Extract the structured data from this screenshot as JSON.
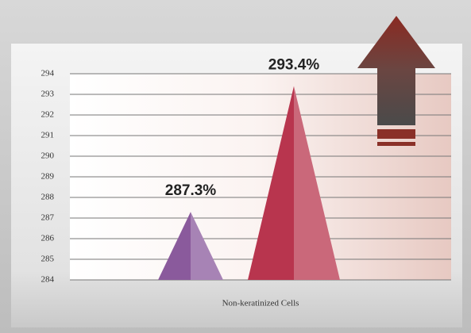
{
  "chart_data": {
    "type": "pyramid",
    "categories": [
      "Non-keratinized Cells"
    ],
    "series": [
      {
        "color": "#8a5a9c",
        "values": [
          287.3
        ],
        "value_labels": [
          "287.3%"
        ]
      },
      {
        "color": "#b8354e",
        "values": [
          293.4
        ],
        "value_labels": [
          "293.4%"
        ]
      }
    ],
    "ylim": [
      284,
      294
    ],
    "yticks": [
      284,
      285,
      286,
      287,
      288,
      289,
      290,
      291,
      292,
      293,
      294
    ],
    "grid": true
  }
}
